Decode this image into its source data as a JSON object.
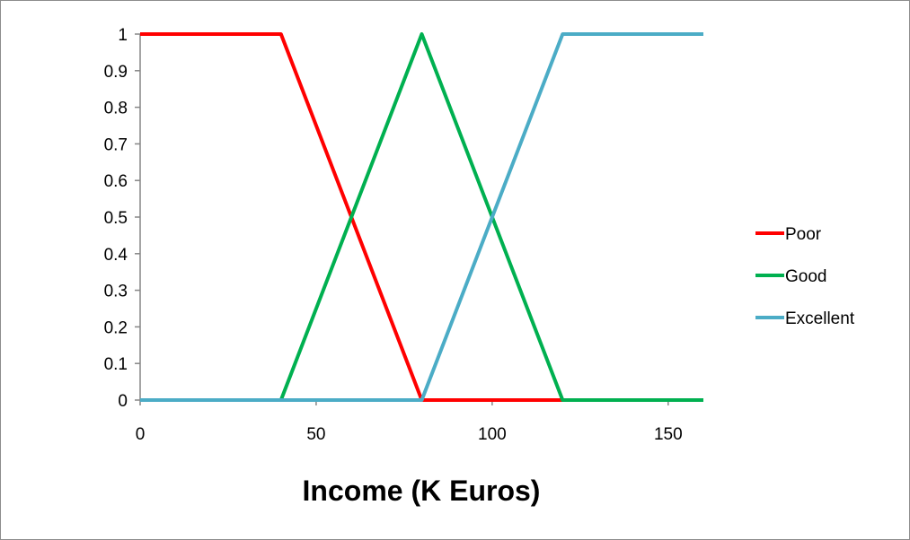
{
  "chart_data": {
    "type": "line",
    "title": "",
    "xlabel": "Income (K Euros)",
    "ylabel": "",
    "xlim": [
      0,
      160
    ],
    "ylim": [
      0,
      1
    ],
    "xticks": [
      0,
      50,
      100,
      150
    ],
    "xtick_labels": [
      "0",
      "50",
      "100",
      "150"
    ],
    "yticks": [
      0,
      0.1,
      0.2,
      0.3,
      0.4,
      0.5,
      0.6,
      0.7,
      0.8,
      0.9,
      1
    ],
    "ytick_labels": [
      "0",
      "0.1",
      "0.2",
      "0.3",
      "0.4",
      "0.5",
      "0.6",
      "0.7",
      "0.8",
      "0.9",
      "1"
    ],
    "grid": false,
    "legend_position": "right",
    "series": [
      {
        "name": "Poor",
        "color": "#ff0000",
        "x": [
          0,
          40,
          80,
          120,
          160
        ],
        "y": [
          1,
          1,
          0,
          0,
          0
        ]
      },
      {
        "name": "Good",
        "color": "#00b050",
        "x": [
          0,
          40,
          80,
          120,
          160
        ],
        "y": [
          0,
          0,
          1,
          0,
          0
        ]
      },
      {
        "name": "Excellent",
        "color": "#4bacc6",
        "x": [
          0,
          40,
          80,
          120,
          160
        ],
        "y": [
          0,
          0,
          0,
          1,
          1
        ]
      }
    ]
  }
}
